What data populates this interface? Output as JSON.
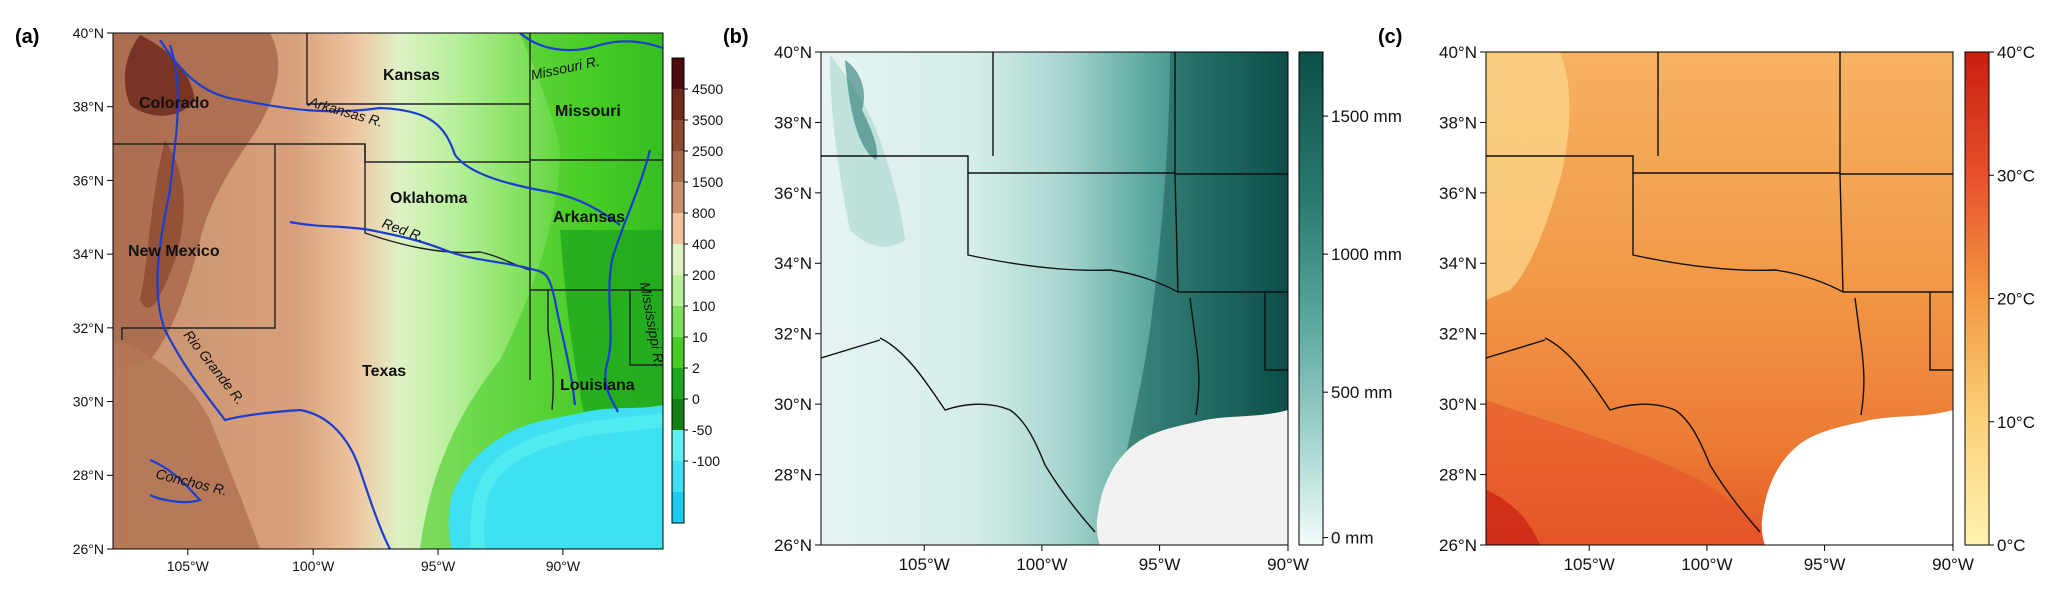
{
  "panels": [
    {
      "label": "(a)",
      "lat_ticks": [
        "40°N",
        "38°N",
        "36°N",
        "34°N",
        "32°N",
        "30°N",
        "28°N",
        "26°N"
      ],
      "lon_ticks": [
        "105°W",
        "100°W",
        "95°W",
        "90°W"
      ],
      "states": [
        "Colorado",
        "Kansas",
        "Missouri",
        "Oklahoma",
        "Arkansas",
        "New Mexico",
        "Texas",
        "Louisiana"
      ],
      "rivers": [
        "Arkansas R.",
        "Missouri R.",
        "Red R.",
        "Mississippi R.",
        "Rio Grande R.",
        "Conchos R."
      ],
      "colorbar": {
        "labels": [
          "4500",
          "3500",
          "2500",
          "1500",
          "800",
          "400",
          "200",
          "100",
          "10",
          "2",
          "0",
          "-50",
          "-100"
        ],
        "colors": [
          "#4a0c0c",
          "#6e2a1c",
          "#8c4a32",
          "#a8694c",
          "#c8926f",
          "#eec4a0",
          "#dff2c6",
          "#b8f09c",
          "#7fe05a",
          "#46cc24",
          "#1fa81e",
          "#127e14",
          "#5ef0f0",
          "#3ee0f2",
          "#1ecbf0"
        ]
      }
    },
    {
      "label": "(b)",
      "lat_ticks": [
        "40°N",
        "38°N",
        "36°N",
        "34°N",
        "32°N",
        "30°N",
        "28°N",
        "26°N"
      ],
      "lon_ticks": [
        "105°W",
        "100°W",
        "95°W",
        "90°W"
      ],
      "colorbar": {
        "labels": [
          "1500 mm",
          "1000 mm",
          "500 mm",
          "0 mm"
        ],
        "colors": [
          "#0d4e48",
          "#2a7a70",
          "#5ba89e",
          "#98cdc5",
          "#ccebe6",
          "#f4fbfa"
        ]
      }
    },
    {
      "label": "(c)",
      "lat_ticks": [
        "40°N",
        "38°N",
        "36°N",
        "34°N",
        "32°N",
        "30°N",
        "28°N",
        "26°N"
      ],
      "lon_ticks": [
        "105°W",
        "100°W",
        "95°W",
        "90°W"
      ],
      "colorbar": {
        "labels": [
          "40°C",
          "30°C",
          "20°C",
          "10°C",
          "0°C"
        ],
        "colors": [
          "#c81e10",
          "#e8502a",
          "#f49a44",
          "#fcd27a",
          "#fff3b0"
        ]
      }
    }
  ]
}
